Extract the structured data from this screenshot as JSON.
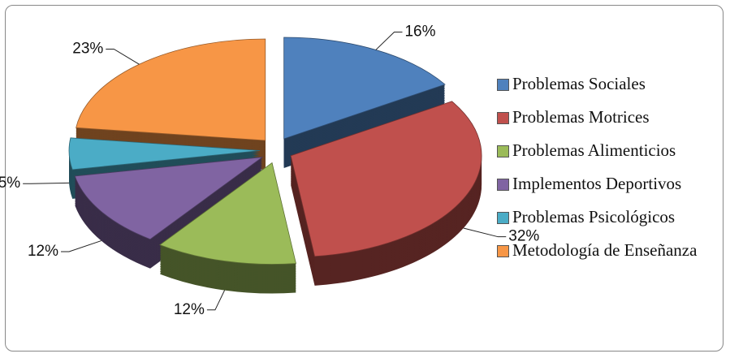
{
  "chart_data": {
    "type": "pie",
    "categories": [
      "Problemas Sociales",
      "Problemas Motrices",
      "Problemas Alimenticios",
      "Implementos Deportivos",
      "Problemas Psicológicos",
      "Metodología de Enseñanza"
    ],
    "values": [
      16,
      32,
      12,
      12,
      5,
      23
    ],
    "value_labels": [
      "16%",
      "32%",
      "12%",
      "12%",
      "5%",
      "23%"
    ],
    "colors": [
      "#4f81bd",
      "#c0504d",
      "#9bbb59",
      "#8064a2",
      "#4bacc6",
      "#f79646"
    ],
    "legend": "right"
  }
}
